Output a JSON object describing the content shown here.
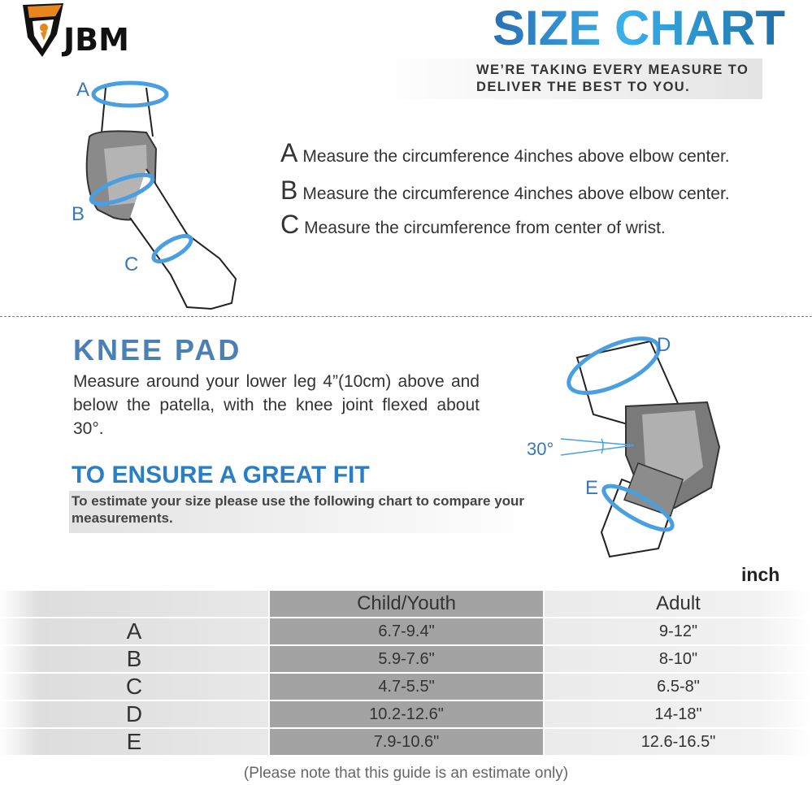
{
  "brand": {
    "logo_text": "JBM",
    "colors": {
      "shield": "#111111",
      "accent": "#e8861e"
    }
  },
  "header": {
    "title": "SIZE CHART",
    "tagline_line1": "WE’RE TAKING EVERY MEASURE TO",
    "tagline_line2": "DELIVER THE BEST TO YOU."
  },
  "elbow": {
    "diagram_labels": [
      "A",
      "B",
      "C"
    ],
    "instructions": [
      {
        "letter": "A",
        "text": "Measure the circumference 4inches above elbow center."
      },
      {
        "letter": "B",
        "text": "Measure the circumference 4inches above elbow center."
      },
      {
        "letter": "C",
        "text": "Measure the circumference from center of wrist."
      }
    ]
  },
  "knee": {
    "title": "KNEE PAD",
    "description": "Measure around your lower leg 4”(10cm) above and below the patella, with the knee joint flexed about 30°.",
    "diagram_labels": {
      "top": "D",
      "bottom": "E",
      "angle": "30°"
    }
  },
  "fit": {
    "title": "TO ENSURE A GREAT FIT",
    "text": "To estimate your size please use the following chart to compare your measurements."
  },
  "table": {
    "unit": "inch",
    "columns": [
      "",
      "Child/Youth",
      "Adult"
    ],
    "rows": [
      {
        "label": "A",
        "child": "6.7-9.4\"",
        "adult": "9-12\""
      },
      {
        "label": "B",
        "child": "5.9-7.6\"",
        "adult": "8-10\""
      },
      {
        "label": "C",
        "child": "4.7-5.5\"",
        "adult": "6.5-8\""
      },
      {
        "label": "D",
        "child": "10.2-12.6\"",
        "adult": "14-18\""
      },
      {
        "label": "E",
        "child": "7.9-10.6\"",
        "adult": "12.6-16.5\""
      }
    ]
  },
  "footer": {
    "note": "(Please note that this guide is an estimate only)"
  },
  "colors": {
    "blue": "#2a7fc4",
    "ring": "#4a9fe0",
    "table_dark": "#a3a3a3",
    "table_light": "#ebebeb"
  }
}
